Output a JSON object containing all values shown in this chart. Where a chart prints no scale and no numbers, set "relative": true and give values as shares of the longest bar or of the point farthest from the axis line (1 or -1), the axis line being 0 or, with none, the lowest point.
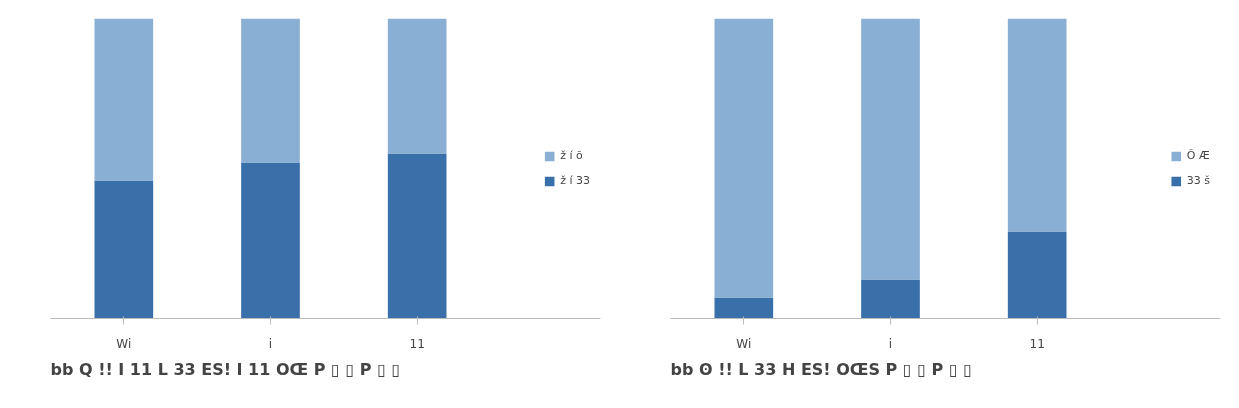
{
  "chart_data": [
    {
      "type": "bar",
      "stacked": true,
      "relative": true,
      "categories": [
        "Wi",
        "i",
        "11"
      ],
      "legend": "right",
      "series": [
        {
          "name": "ž í 33",
          "color": "#3a70aa",
          "values": [
            0.46,
            0.52,
            0.55
          ]
        },
        {
          "name": "ž í õ",
          "color": "#8aafd4",
          "values": [
            0.54,
            0.48,
            0.45
          ]
        }
      ],
      "annotations": [
        "bb Q !! I 11 L 33 ES! I 11 OŒ P ▯ ▯ P ▯ ▯"
      ]
    },
    {
      "type": "bar",
      "stacked": true,
      "relative": true,
      "categories": [
        "Wi",
        "i",
        "11"
      ],
      "legend": "right",
      "series": [
        {
          "name": "33 š",
          "color": "#3a70aa",
          "values": [
            0.07,
            0.13,
            0.29
          ]
        },
        {
          "name": "Õ Æ",
          "color": "#8aafd4",
          "values": [
            0.93,
            0.87,
            0.71
          ]
        }
      ],
      "annotations": [
        "bb ʘ !! L 33 H ES! OŒS P ▯ ▯ P ▯ ▯"
      ]
    }
  ]
}
